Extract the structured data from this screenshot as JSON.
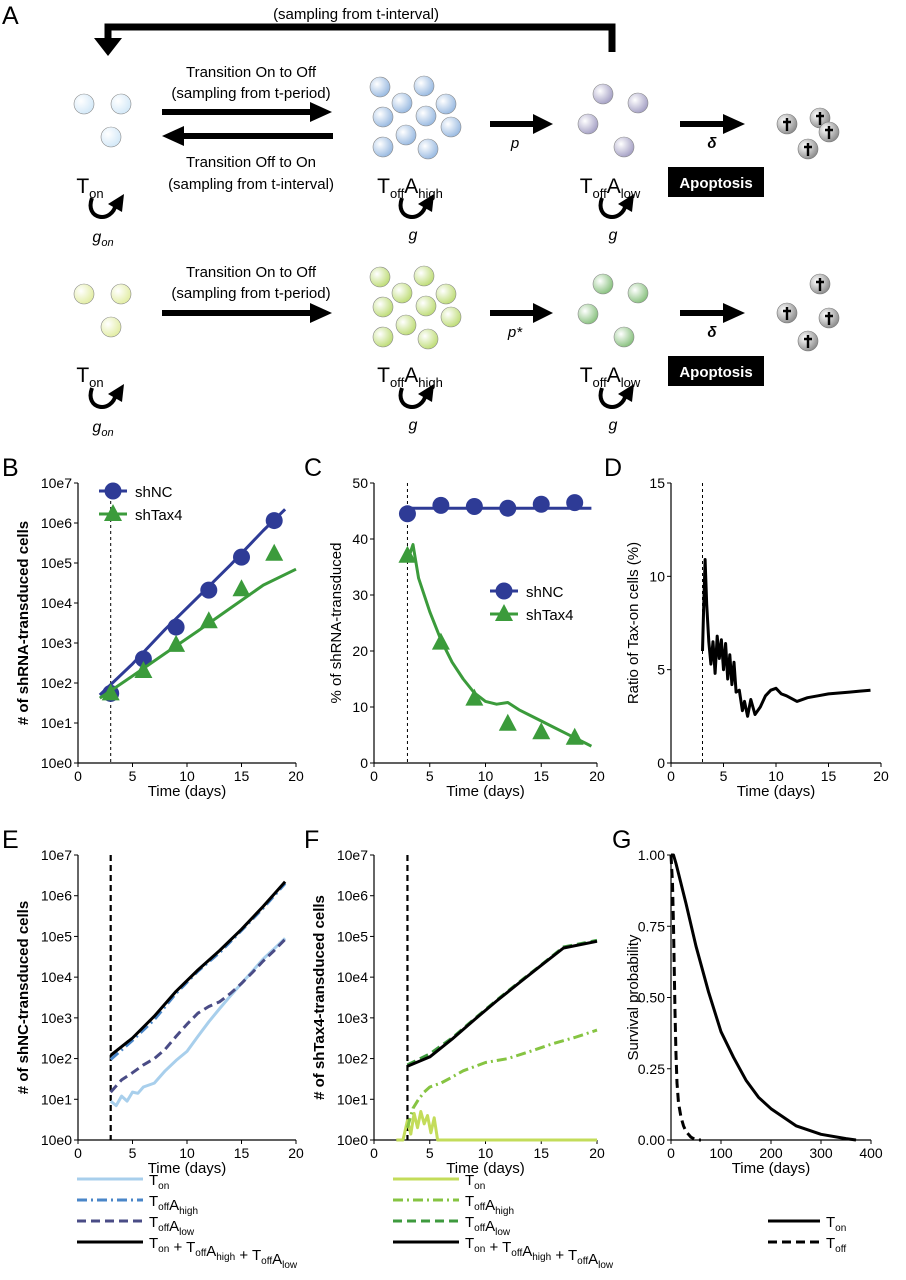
{
  "panel_labels": [
    "A",
    "B",
    "C",
    "D",
    "E",
    "F",
    "G"
  ],
  "schematic": {
    "top_feedback_label": "(sampling from t-interval)",
    "row1": {
      "on_to_off_line1": "Transition On to Off",
      "on_to_off_line2": "(sampling from t-period)",
      "off_to_on_line1": "Transition Off to On",
      "off_to_on_line2": "(sampling from t-interval)",
      "p_label": "p",
      "delta_label": "δ",
      "apoptosis": "Apoptosis",
      "growth_on": "g",
      "growth_on_sub": "on",
      "growth_high": "g",
      "growth_low": "g"
    },
    "row2": {
      "on_to_off_line1": "Transition On to Off",
      "on_to_off_line2": "(sampling from t-period)",
      "p_label": "p*",
      "delta_label": "δ",
      "apoptosis": "Apoptosis",
      "growth_on": "g",
      "growth_on_sub": "on",
      "growth_high": "g",
      "growth_low": "g"
    },
    "state_T": "T",
    "sub_on": "on",
    "sub_off": "off",
    "state_A": "A",
    "sub_high": "high",
    "sub_low": "low",
    "colors": {
      "row1_on": "#cfe6f7",
      "row1_high": "#8fb3de",
      "row1_low": "#9c97bf",
      "row2_on": "#dfeb9a",
      "row2_high": "#b8d96a",
      "row2_low": "#7dbb72",
      "dead": "#999999"
    }
  },
  "chart_data": [
    {
      "panel": "B",
      "type": "line",
      "xlabel": "Time (days)",
      "ylabel": "# of shRNA-transduced cells",
      "xlim": [
        0,
        20
      ],
      "ylim": [
        1,
        10000000
      ],
      "yscale": "log",
      "xticks": [
        "0",
        "5",
        "10",
        "15",
        "20"
      ],
      "yticks": [
        "10e0",
        "10e1",
        "10e2",
        "10e3",
        "10e4",
        "10e5",
        "10e6",
        "10e7"
      ],
      "vline_x": 3,
      "legend": [
        "shNC",
        "shTax4"
      ],
      "series": [
        {
          "name": "shNC",
          "color": "#2e3b96",
          "marker": "circle",
          "points": {
            "x": [
              3,
              6,
              9,
              12,
              15,
              18
            ],
            "y": [
              55,
              400,
              2500,
              21000,
              140000,
              1150000
            ]
          },
          "fit": {
            "x": [
              2,
              5,
              8,
              11,
              14,
              17,
              19
            ],
            "y": [
              50,
              300,
              2200,
              14000,
              90000,
              650000,
              2200000
            ]
          }
        },
        {
          "name": "shTax4",
          "color": "#3b9b3b",
          "marker": "triangle",
          "points": {
            "x": [
              3,
              6,
              9,
              12,
              15,
              18
            ],
            "y": [
              55,
              200,
              900,
              3500,
              22000,
              170000
            ]
          },
          "fit": {
            "x": [
              2,
              5,
              8,
              11,
              14,
              17,
              20
            ],
            "y": [
              42,
              150,
              550,
              2000,
              7500,
              28000,
              70000
            ]
          }
        }
      ]
    },
    {
      "panel": "C",
      "type": "line",
      "xlabel": "Time (days)",
      "ylabel": "% of shRNA-transduced",
      "xlim": [
        0,
        20
      ],
      "ylim": [
        0,
        50
      ],
      "xticks": [
        "0",
        "5",
        "10",
        "15",
        "20"
      ],
      "yticks": [
        "0",
        "10",
        "20",
        "30",
        "40",
        "50"
      ],
      "vline_x": 3,
      "legend": [
        "shNC",
        "shTax4"
      ],
      "series": [
        {
          "name": "shNC",
          "color": "#2e3b96",
          "marker": "circle",
          "points": {
            "x": [
              3,
              6,
              9,
              12,
              15,
              18
            ],
            "y": [
              44.5,
              46,
              45.8,
              45.5,
              46.2,
              46.5
            ]
          },
          "fit": {
            "x": [
              3,
              19.5
            ],
            "y": [
              45.5,
              45.5
            ]
          }
        },
        {
          "name": "shTax4",
          "color": "#3b9b3b",
          "marker": "triangle",
          "points": {
            "x": [
              3,
              6,
              9,
              12,
              15,
              18
            ],
            "y": [
              37,
              21.5,
              11.5,
              7,
              5.5,
              4.5
            ]
          },
          "fit": {
            "x": [
              3,
              3.5,
              4,
              5,
              6,
              7,
              8,
              9,
              10,
              11,
              12,
              13,
              14,
              15,
              16,
              17,
              18,
              19,
              19.5
            ],
            "y": [
              36,
              39,
              33,
              27,
              22,
              18,
              15,
              12.5,
              11,
              10.5,
              10.8,
              9.5,
              8.5,
              7.5,
              6.5,
              5.5,
              4.5,
              3.5,
              3
            ]
          }
        }
      ]
    },
    {
      "panel": "D",
      "type": "line",
      "xlabel": "Time (days)",
      "ylabel": "Ratio of Tax-on cells (%)",
      "xlim": [
        0,
        20
      ],
      "ylim": [
        0,
        15
      ],
      "xticks": [
        "0",
        "5",
        "10",
        "15",
        "20"
      ],
      "yticks": [
        "0",
        "5",
        "10",
        "15"
      ],
      "vline_x": 3,
      "series": [
        {
          "color": "#000000",
          "x": [
            3,
            3.1,
            3.25,
            3.4,
            3.6,
            3.8,
            4,
            4.2,
            4.4,
            4.6,
            4.8,
            5,
            5.2,
            5.4,
            5.6,
            5.8,
            6,
            6.2,
            6.5,
            6.8,
            7,
            7.3,
            7.6,
            8,
            8.5,
            9,
            9.5,
            10,
            10.5,
            11,
            12,
            13,
            14,
            15,
            16,
            17,
            18,
            19
          ],
          "y": [
            6,
            8,
            10.9,
            8.5,
            6.5,
            5.3,
            6.5,
            4.8,
            6.8,
            5.6,
            6.6,
            5,
            6.4,
            4.5,
            5.8,
            4.2,
            5.4,
            3.8,
            3.9,
            2.8,
            3.3,
            2.5,
            3.4,
            2.6,
            3,
            3.6,
            3.9,
            4,
            3.7,
            3.6,
            3.3,
            3.5,
            3.6,
            3.7,
            3.75,
            3.8,
            3.85,
            3.9
          ]
        }
      ]
    },
    {
      "panel": "E",
      "type": "line",
      "xlabel": "Time (days)",
      "ylabel": "# of shNC-transduced cells",
      "xlim": [
        0,
        20
      ],
      "ylim": [
        1,
        10000000
      ],
      "yscale": "log",
      "xticks": [
        "0",
        "5",
        "10",
        "15",
        "20"
      ],
      "yticks": [
        "10e0",
        "10e1",
        "10e2",
        "10e3",
        "10e4",
        "10e5",
        "10e6",
        "10e7"
      ],
      "vline_x": 3,
      "series": [
        {
          "key": "Ton",
          "color": "#a8cfec",
          "dash": "solid",
          "x": [
            3,
            3.5,
            4,
            4.5,
            5,
            5.5,
            6,
            7,
            8,
            9,
            10,
            11,
            12,
            13,
            14,
            15,
            16,
            17,
            18,
            19
          ],
          "y": [
            9,
            7,
            12,
            9,
            15,
            14,
            20,
            25,
            50,
            90,
            150,
            350,
            800,
            1700,
            3500,
            7000,
            14000,
            28000,
            50000,
            90000
          ]
        },
        {
          "key": "ToffAlow",
          "color": "#4a4c86",
          "dash": "dash",
          "x": [
            3,
            4,
            5,
            6,
            7,
            8,
            9,
            10,
            11,
            12,
            13,
            14,
            15,
            16,
            17,
            18,
            19
          ],
          "y": [
            15,
            30,
            45,
            70,
            100,
            170,
            350,
            700,
            1300,
            1900,
            2500,
            4000,
            7000,
            13000,
            25000,
            45000,
            85000
          ]
        },
        {
          "key": "ToffAhigh",
          "color": "#4a86c8",
          "dash": "dashdot",
          "x": [
            3,
            5,
            7,
            9,
            11,
            13,
            15,
            17,
            19
          ],
          "y": [
            95,
            280,
            900,
            4000,
            14000,
            40000,
            140000,
            500000,
            2000000
          ]
        },
        {
          "key": "Total",
          "color": "#000000",
          "dash": "solid",
          "x": [
            3,
            5,
            7,
            9,
            11,
            13,
            15,
            17,
            19
          ],
          "y": [
            120,
            320,
            1100,
            4500,
            15000,
            45000,
            150000,
            550000,
            2200000
          ]
        }
      ],
      "legend": [
        {
          "key": "Ton",
          "color": "#a8cfec",
          "dash": "solid",
          "parts": [
            [
              "T",
              "on"
            ]
          ]
        },
        {
          "key": "ToffAhigh",
          "color": "#4a86c8",
          "dash": "dashdot",
          "parts": [
            [
              "T",
              "off"
            ],
            [
              "A",
              "high"
            ]
          ]
        },
        {
          "key": "ToffAlow",
          "color": "#4a4c86",
          "dash": "dash",
          "parts": [
            [
              "T",
              "off"
            ],
            [
              "A",
              "low"
            ]
          ]
        },
        {
          "key": "Total",
          "color": "#000000",
          "dash": "solid",
          "parts": [
            [
              "T",
              "on"
            ],
            [
              " + T",
              "off"
            ],
            [
              "A",
              "high"
            ],
            [
              " + T",
              "off"
            ],
            [
              "A",
              "low"
            ]
          ]
        }
      ]
    },
    {
      "panel": "F",
      "type": "line",
      "xlabel": "Time (days)",
      "ylabel": "# of shTax4-transduced cells",
      "xlim": [
        0,
        20
      ],
      "ylim": [
        1,
        10000000
      ],
      "yscale": "log",
      "xticks": [
        "0",
        "5",
        "10",
        "15",
        "20"
      ],
      "yticks": [
        "10e0",
        "10e1",
        "10e2",
        "10e3",
        "10e4",
        "10e5",
        "10e6",
        "10e7"
      ],
      "vline_x": 3,
      "series": [
        {
          "key": "Ton",
          "color": "#c3dc5a",
          "dash": "solid",
          "x": [
            2,
            2.6,
            3,
            3.3,
            3.6,
            3.9,
            4.2,
            4.5,
            4.8,
            5.1,
            5.4,
            5.7,
            6,
            20
          ],
          "y": [
            1,
            1,
            3,
            1.4,
            4.5,
            2,
            5,
            2.5,
            4,
            1.5,
            3.5,
            1,
            1,
            1
          ]
        },
        {
          "key": "ToffAlow",
          "color": "#3e9a3e",
          "dash": "dash",
          "x": [
            3,
            5,
            7,
            9,
            11,
            13,
            15,
            17,
            20
          ],
          "y": [
            70,
            130,
            320,
            950,
            2700,
            7500,
            20000,
            55000,
            80000
          ]
        },
        {
          "key": "ToffAhigh",
          "color": "#86c442",
          "dash": "dashdot",
          "x": [
            3,
            3.5,
            4,
            4.5,
            5,
            6,
            7,
            8,
            10,
            12,
            14,
            16,
            18,
            20
          ],
          "y": [
            2,
            6,
            10,
            15,
            20,
            25,
            35,
            50,
            80,
            100,
            150,
            230,
            330,
            500
          ]
        },
        {
          "key": "Total",
          "color": "#000000",
          "dash": "solid",
          "x": [
            3,
            5,
            7,
            9,
            11,
            13,
            15,
            17,
            20
          ],
          "y": [
            65,
            110,
            300,
            900,
            2600,
            7200,
            19500,
            52000,
            76000
          ]
        }
      ],
      "legend": [
        {
          "key": "Ton",
          "color": "#c3dc5a",
          "dash": "solid",
          "parts": [
            [
              "T",
              "on"
            ]
          ]
        },
        {
          "key": "ToffAhigh",
          "color": "#86c442",
          "dash": "dashdot",
          "parts": [
            [
              "T",
              "off"
            ],
            [
              "A",
              "high"
            ]
          ]
        },
        {
          "key": "ToffAlow",
          "color": "#3e9a3e",
          "dash": "dash",
          "parts": [
            [
              "T",
              "off"
            ],
            [
              "A",
              "low"
            ]
          ]
        },
        {
          "key": "Total",
          "color": "#000000",
          "dash": "solid",
          "parts": [
            [
              "T",
              "on"
            ],
            [
              " + T",
              "off"
            ],
            [
              "A",
              "high"
            ],
            [
              " + T",
              "off"
            ],
            [
              "A",
              "low"
            ]
          ]
        }
      ]
    },
    {
      "panel": "G",
      "type": "line",
      "xlabel": "Time (days)",
      "ylabel": "Survival probability",
      "xlim": [
        0,
        400
      ],
      "ylim": [
        0,
        1
      ],
      "xticks": [
        "0",
        "100",
        "200",
        "300",
        "400"
      ],
      "yticks": [
        "0.00",
        "0.25",
        "0.50",
        "0.75",
        "1.00"
      ],
      "series": [
        {
          "key": "Ton",
          "color": "#000000",
          "dash": "solid",
          "x": [
            0,
            5,
            10,
            20,
            30,
            50,
            75,
            100,
            125,
            150,
            175,
            200,
            250,
            300,
            350,
            370
          ],
          "y": [
            1.0,
            1.0,
            0.97,
            0.9,
            0.83,
            0.68,
            0.52,
            0.38,
            0.29,
            0.21,
            0.15,
            0.11,
            0.05,
            0.02,
            0.005,
            0.0
          ]
        },
        {
          "key": "Toff",
          "color": "#000000",
          "dash": "dash",
          "x": [
            0,
            3,
            5,
            8,
            10,
            12,
            15,
            20,
            25,
            30,
            40,
            50,
            60
          ],
          "y": [
            1.0,
            0.9,
            0.75,
            0.45,
            0.3,
            0.2,
            0.13,
            0.08,
            0.05,
            0.03,
            0.01,
            0.0,
            0.0
          ]
        }
      ],
      "legend": [
        {
          "key": "Ton",
          "color": "#000000",
          "dash": "solid",
          "parts": [
            [
              "T",
              "on"
            ]
          ]
        },
        {
          "key": "Toff",
          "color": "#000000",
          "dash": "dash",
          "parts": [
            [
              "T",
              "off"
            ]
          ]
        }
      ]
    }
  ]
}
